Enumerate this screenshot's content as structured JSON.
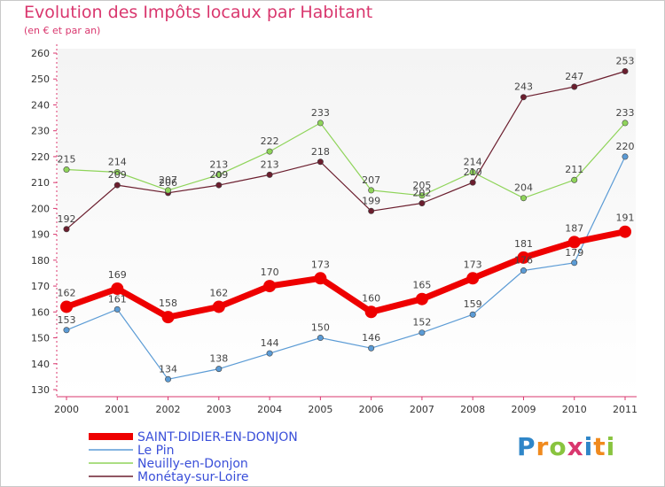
{
  "header": {
    "title": "Evolution des Impôts locaux par Habitant",
    "subtitle": "(en € et par an)"
  },
  "brand": {
    "name": "Proxiti"
  },
  "chart_data": {
    "type": "line",
    "x": [
      "2000",
      "2001",
      "2002",
      "2003",
      "2004",
      "2005",
      "2006",
      "2007",
      "2008",
      "2009",
      "2010",
      "2011"
    ],
    "ylim": [
      130,
      260
    ],
    "yticks": [
      130,
      140,
      150,
      160,
      170,
      180,
      190,
      200,
      210,
      220,
      230,
      240,
      250,
      260
    ],
    "grid": false,
    "legend_position": "bottom-left",
    "series": [
      {
        "name": "SAINT-DIDIER-EN-DONJON",
        "color": "#ee0000",
        "values": [
          162,
          169,
          158,
          162,
          170,
          173,
          160,
          165,
          173,
          181,
          187,
          191
        ]
      },
      {
        "name": "Le Pin",
        "color": "#5b9bd5",
        "values": [
          153,
          161,
          134,
          138,
          144,
          150,
          146,
          152,
          159,
          176,
          179,
          220
        ]
      },
      {
        "name": "Neuilly-en-Donjon",
        "color": "#8fd45a",
        "values": [
          215,
          214,
          207,
          213,
          222,
          233,
          207,
          205,
          214,
          204,
          211,
          233
        ]
      },
      {
        "name": "Monétay-sur-Loire",
        "color": "#6b1e2e",
        "values": [
          192,
          209,
          206,
          209,
          213,
          218,
          199,
          202,
          210,
          243,
          247,
          253
        ]
      }
    ]
  }
}
